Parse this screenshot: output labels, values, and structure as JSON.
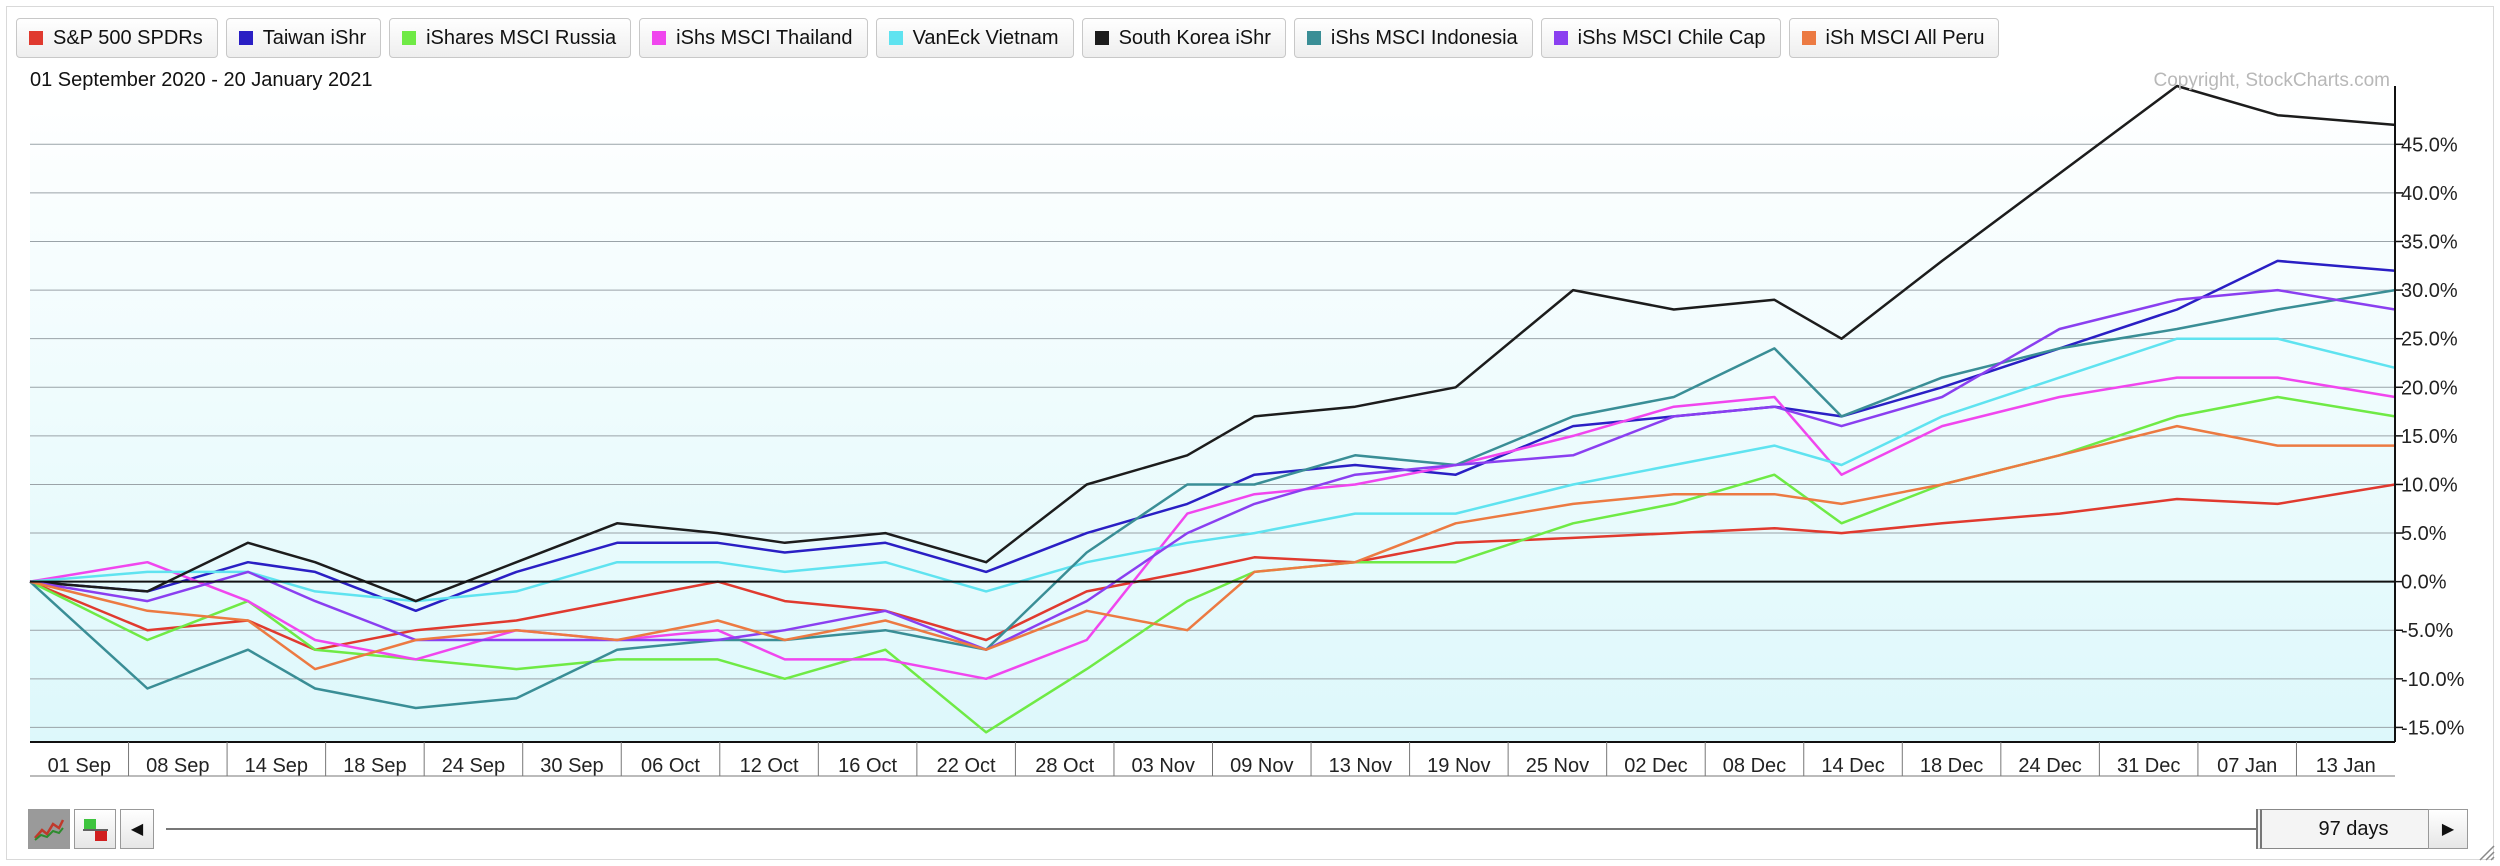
{
  "legend": [
    {
      "label": "S&P 500 SPDRs",
      "color": "#e03a2f"
    },
    {
      "label": "Taiwan iShr",
      "color": "#2a1fc4"
    },
    {
      "label": "iShares MSCI Russia",
      "color": "#6fea45"
    },
    {
      "label": "iShs MSCI Thailand",
      "color": "#f046ee"
    },
    {
      "label": "VanEck Vietnam",
      "color": "#5fe3f0"
    },
    {
      "label": "South Korea iShr",
      "color": "#1c1c1c"
    },
    {
      "label": "iShs MSCI Indonesia",
      "color": "#3a8e96"
    },
    {
      "label": "iShs MSCI Chile Cap",
      "color": "#8a3ff0"
    },
    {
      "label": "iSh MSCI All Peru",
      "color": "#ec7a42"
    }
  ],
  "date_range": "01 September 2020 - 20 January 2021",
  "copyright": "Copyright, StockCharts.com",
  "toolbar": {
    "range_label": "97 days"
  },
  "chart_data": {
    "type": "line",
    "x_tick_labels": [
      "01 Sep",
      "08 Sep",
      "14 Sep",
      "18 Sep",
      "24 Sep",
      "30 Sep",
      "06 Oct",
      "12 Oct",
      "16 Oct",
      "22 Oct",
      "28 Oct",
      "03 Nov",
      "09 Nov",
      "13 Nov",
      "19 Nov",
      "25 Nov",
      "02 Dec",
      "08 Dec",
      "14 Dec",
      "18 Dec",
      "24 Dec",
      "31 Dec",
      "07 Jan",
      "13 Jan"
    ],
    "y_tick_labels": [
      "-15.0%",
      "-10.0%",
      "-5.0%",
      "0.0%",
      "5.0%",
      "10.0%",
      "15.0%",
      "20.0%",
      "25.0%",
      "30.0%",
      "35.0%",
      "40.0%",
      "45.0%"
    ],
    "ylim": [
      -16.5,
      51
    ],
    "y_unit": "%",
    "x_range": [
      "2020-09-01",
      "2021-01-20"
    ],
    "series": [
      {
        "name": "S&P 500 SPDRs",
        "color": "#e03a2f",
        "points": [
          [
            "2020-09-01",
            0
          ],
          [
            "2020-09-08",
            -5
          ],
          [
            "2020-09-14",
            -4
          ],
          [
            "2020-09-18",
            -7
          ],
          [
            "2020-09-24",
            -5
          ],
          [
            "2020-09-30",
            -4
          ],
          [
            "2020-10-06",
            -2
          ],
          [
            "2020-10-12",
            0
          ],
          [
            "2020-10-16",
            -2
          ],
          [
            "2020-10-22",
            -3
          ],
          [
            "2020-10-28",
            -6
          ],
          [
            "2020-11-03",
            -1
          ],
          [
            "2020-11-09",
            1
          ],
          [
            "2020-11-13",
            2.5
          ],
          [
            "2020-11-19",
            2
          ],
          [
            "2020-11-25",
            4
          ],
          [
            "2020-12-02",
            4.5
          ],
          [
            "2020-12-08",
            5
          ],
          [
            "2020-12-14",
            5.5
          ],
          [
            "2020-12-18",
            5
          ],
          [
            "2020-12-24",
            6
          ],
          [
            "2020-12-31",
            7
          ],
          [
            "2021-01-07",
            8.5
          ],
          [
            "2021-01-13",
            8
          ],
          [
            "2021-01-20",
            10
          ]
        ]
      },
      {
        "name": "Taiwan iShr",
        "color": "#2a1fc4",
        "points": [
          [
            "2020-09-01",
            0
          ],
          [
            "2020-09-08",
            -1
          ],
          [
            "2020-09-14",
            2
          ],
          [
            "2020-09-18",
            1
          ],
          [
            "2020-09-24",
            -3
          ],
          [
            "2020-09-30",
            1
          ],
          [
            "2020-10-06",
            4
          ],
          [
            "2020-10-12",
            4
          ],
          [
            "2020-10-16",
            3
          ],
          [
            "2020-10-22",
            4
          ],
          [
            "2020-10-28",
            1
          ],
          [
            "2020-11-03",
            5
          ],
          [
            "2020-11-09",
            8
          ],
          [
            "2020-11-13",
            11
          ],
          [
            "2020-11-19",
            12
          ],
          [
            "2020-11-25",
            11
          ],
          [
            "2020-12-02",
            16
          ],
          [
            "2020-12-08",
            17
          ],
          [
            "2020-12-14",
            18
          ],
          [
            "2020-12-18",
            17
          ],
          [
            "2020-12-24",
            20
          ],
          [
            "2020-12-31",
            24
          ],
          [
            "2021-01-07",
            28
          ],
          [
            "2021-01-13",
            33
          ],
          [
            "2021-01-20",
            32
          ]
        ]
      },
      {
        "name": "iShares MSCI Russia",
        "color": "#6fea45",
        "points": [
          [
            "2020-09-01",
            0
          ],
          [
            "2020-09-08",
            -6
          ],
          [
            "2020-09-14",
            -2
          ],
          [
            "2020-09-18",
            -7
          ],
          [
            "2020-09-24",
            -8
          ],
          [
            "2020-09-30",
            -9
          ],
          [
            "2020-10-06",
            -8
          ],
          [
            "2020-10-12",
            -8
          ],
          [
            "2020-10-16",
            -10
          ],
          [
            "2020-10-22",
            -7
          ],
          [
            "2020-10-28",
            -15.5
          ],
          [
            "2020-11-03",
            -9
          ],
          [
            "2020-11-09",
            -2
          ],
          [
            "2020-11-13",
            1
          ],
          [
            "2020-11-19",
            2
          ],
          [
            "2020-11-25",
            2
          ],
          [
            "2020-12-02",
            6
          ],
          [
            "2020-12-08",
            8
          ],
          [
            "2020-12-14",
            11
          ],
          [
            "2020-12-18",
            6
          ],
          [
            "2020-12-24",
            10
          ],
          [
            "2020-12-31",
            13
          ],
          [
            "2021-01-07",
            17
          ],
          [
            "2021-01-13",
            19
          ],
          [
            "2021-01-20",
            17
          ]
        ]
      },
      {
        "name": "iShs MSCI Thailand",
        "color": "#f046ee",
        "points": [
          [
            "2020-09-01",
            0
          ],
          [
            "2020-09-08",
            2
          ],
          [
            "2020-09-14",
            -2
          ],
          [
            "2020-09-18",
            -6
          ],
          [
            "2020-09-24",
            -8
          ],
          [
            "2020-09-30",
            -5
          ],
          [
            "2020-10-06",
            -6
          ],
          [
            "2020-10-12",
            -5
          ],
          [
            "2020-10-16",
            -8
          ],
          [
            "2020-10-22",
            -8
          ],
          [
            "2020-10-28",
            -10
          ],
          [
            "2020-11-03",
            -6
          ],
          [
            "2020-11-09",
            7
          ],
          [
            "2020-11-13",
            9
          ],
          [
            "2020-11-19",
            10
          ],
          [
            "2020-11-25",
            12
          ],
          [
            "2020-12-02",
            15
          ],
          [
            "2020-12-08",
            18
          ],
          [
            "2020-12-14",
            19
          ],
          [
            "2020-12-18",
            11
          ],
          [
            "2020-12-24",
            16
          ],
          [
            "2020-12-31",
            19
          ],
          [
            "2021-01-07",
            21
          ],
          [
            "2021-01-13",
            21
          ],
          [
            "2021-01-20",
            19
          ]
        ]
      },
      {
        "name": "VanEck Vietnam",
        "color": "#5fe3f0",
        "points": [
          [
            "2020-09-01",
            0
          ],
          [
            "2020-09-08",
            1
          ],
          [
            "2020-09-14",
            1
          ],
          [
            "2020-09-18",
            -1
          ],
          [
            "2020-09-24",
            -2
          ],
          [
            "2020-09-30",
            -1
          ],
          [
            "2020-10-06",
            2
          ],
          [
            "2020-10-12",
            2
          ],
          [
            "2020-10-16",
            1
          ],
          [
            "2020-10-22",
            2
          ],
          [
            "2020-10-28",
            -1
          ],
          [
            "2020-11-03",
            2
          ],
          [
            "2020-11-09",
            4
          ],
          [
            "2020-11-13",
            5
          ],
          [
            "2020-11-19",
            7
          ],
          [
            "2020-11-25",
            7
          ],
          [
            "2020-12-02",
            10
          ],
          [
            "2020-12-08",
            12
          ],
          [
            "2020-12-14",
            14
          ],
          [
            "2020-12-18",
            12
          ],
          [
            "2020-12-24",
            17
          ],
          [
            "2020-12-31",
            21
          ],
          [
            "2021-01-07",
            25
          ],
          [
            "2021-01-13",
            25
          ],
          [
            "2021-01-20",
            22
          ]
        ]
      },
      {
        "name": "South Korea iShr",
        "color": "#1c1c1c",
        "points": [
          [
            "2020-09-01",
            0
          ],
          [
            "2020-09-08",
            -1
          ],
          [
            "2020-09-14",
            4
          ],
          [
            "2020-09-18",
            2
          ],
          [
            "2020-09-24",
            -2
          ],
          [
            "2020-09-30",
            2
          ],
          [
            "2020-10-06",
            6
          ],
          [
            "2020-10-12",
            5
          ],
          [
            "2020-10-16",
            4
          ],
          [
            "2020-10-22",
            5
          ],
          [
            "2020-10-28",
            2
          ],
          [
            "2020-11-03",
            10
          ],
          [
            "2020-11-09",
            13
          ],
          [
            "2020-11-13",
            17
          ],
          [
            "2020-11-19",
            18
          ],
          [
            "2020-11-25",
            20
          ],
          [
            "2020-12-02",
            30
          ],
          [
            "2020-12-08",
            28
          ],
          [
            "2020-12-14",
            29
          ],
          [
            "2020-12-18",
            25
          ],
          [
            "2020-12-24",
            33
          ],
          [
            "2020-12-31",
            42
          ],
          [
            "2021-01-07",
            51
          ],
          [
            "2021-01-13",
            48
          ],
          [
            "2021-01-20",
            47
          ]
        ]
      },
      {
        "name": "iShs MSCI Indonesia",
        "color": "#3a8e96",
        "points": [
          [
            "2020-09-01",
            0
          ],
          [
            "2020-09-08",
            -11
          ],
          [
            "2020-09-14",
            -7
          ],
          [
            "2020-09-18",
            -11
          ],
          [
            "2020-09-24",
            -13
          ],
          [
            "2020-09-30",
            -12
          ],
          [
            "2020-10-06",
            -7
          ],
          [
            "2020-10-12",
            -6
          ],
          [
            "2020-10-16",
            -6
          ],
          [
            "2020-10-22",
            -5
          ],
          [
            "2020-10-28",
            -7
          ],
          [
            "2020-11-03",
            3
          ],
          [
            "2020-11-09",
            10
          ],
          [
            "2020-11-13",
            10
          ],
          [
            "2020-11-19",
            13
          ],
          [
            "2020-11-25",
            12
          ],
          [
            "2020-12-02",
            17
          ],
          [
            "2020-12-08",
            19
          ],
          [
            "2020-12-14",
            24
          ],
          [
            "2020-12-18",
            17
          ],
          [
            "2020-12-24",
            21
          ],
          [
            "2020-12-31",
            24
          ],
          [
            "2021-01-07",
            26
          ],
          [
            "2021-01-13",
            28
          ],
          [
            "2021-01-20",
            30
          ]
        ]
      },
      {
        "name": "iShs MSCI Chile Cap",
        "color": "#8a3ff0",
        "points": [
          [
            "2020-09-01",
            0
          ],
          [
            "2020-09-08",
            -2
          ],
          [
            "2020-09-14",
            1
          ],
          [
            "2020-09-18",
            -2
          ],
          [
            "2020-09-24",
            -6
          ],
          [
            "2020-09-30",
            -6
          ],
          [
            "2020-10-06",
            -6
          ],
          [
            "2020-10-12",
            -6
          ],
          [
            "2020-10-16",
            -5
          ],
          [
            "2020-10-22",
            -3
          ],
          [
            "2020-10-28",
            -7
          ],
          [
            "2020-11-03",
            -2
          ],
          [
            "2020-11-09",
            5
          ],
          [
            "2020-11-13",
            8
          ],
          [
            "2020-11-19",
            11
          ],
          [
            "2020-11-25",
            12
          ],
          [
            "2020-12-02",
            13
          ],
          [
            "2020-12-08",
            17
          ],
          [
            "2020-12-14",
            18
          ],
          [
            "2020-12-18",
            16
          ],
          [
            "2020-12-24",
            19
          ],
          [
            "2020-12-31",
            26
          ],
          [
            "2021-01-07",
            29
          ],
          [
            "2021-01-13",
            30
          ],
          [
            "2021-01-20",
            28
          ]
        ]
      },
      {
        "name": "iSh MSCI All Peru",
        "color": "#ec7a42",
        "points": [
          [
            "2020-09-01",
            0
          ],
          [
            "2020-09-08",
            -3
          ],
          [
            "2020-09-14",
            -4
          ],
          [
            "2020-09-18",
            -9
          ],
          [
            "2020-09-24",
            -6
          ],
          [
            "2020-09-30",
            -5
          ],
          [
            "2020-10-06",
            -6
          ],
          [
            "2020-10-12",
            -4
          ],
          [
            "2020-10-16",
            -6
          ],
          [
            "2020-10-22",
            -4
          ],
          [
            "2020-10-28",
            -7
          ],
          [
            "2020-11-03",
            -3
          ],
          [
            "2020-11-09",
            -5
          ],
          [
            "2020-11-13",
            1
          ],
          [
            "2020-11-19",
            2
          ],
          [
            "2020-11-25",
            6
          ],
          [
            "2020-12-02",
            8
          ],
          [
            "2020-12-08",
            9
          ],
          [
            "2020-12-14",
            9
          ],
          [
            "2020-12-18",
            8
          ],
          [
            "2020-12-24",
            10
          ],
          [
            "2020-12-31",
            13
          ],
          [
            "2021-01-07",
            16
          ],
          [
            "2021-01-13",
            14
          ],
          [
            "2021-01-20",
            14
          ]
        ]
      }
    ]
  }
}
